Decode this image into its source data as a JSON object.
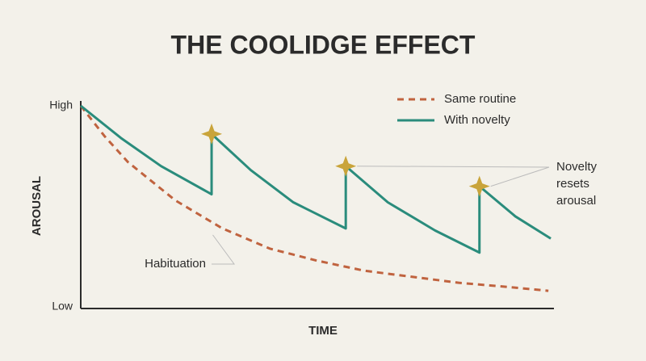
{
  "chart_data": {
    "type": "line",
    "title": "THE COOLIDGE EFFECT",
    "xlabel": "TIME",
    "ylabel": "AROUSAL",
    "xlim": [
      0,
      1
    ],
    "ylim": [
      0,
      1
    ],
    "yticks": [
      {
        "value": 0,
        "label": "Low"
      },
      {
        "value": 1,
        "label": "High"
      }
    ],
    "grid": false,
    "legend": "top-right",
    "series": [
      {
        "name": "Same routine",
        "color": "#c0633f",
        "dashed": true,
        "x": [
          0,
          0.05,
          0.1,
          0.2,
          0.3,
          0.4,
          0.5,
          0.6,
          0.7,
          0.8,
          0.9,
          0.99
        ],
        "values": [
          1.0,
          0.85,
          0.72,
          0.53,
          0.39,
          0.29,
          0.23,
          0.18,
          0.15,
          0.12,
          0.1,
          0.08
        ]
      },
      {
        "name": "With novelty",
        "color": "#2a8c7c",
        "dashed": false,
        "x": [
          0,
          0.085,
          0.17,
          0.277,
          0.277,
          0.36,
          0.45,
          0.561,
          0.561,
          0.65,
          0.75,
          0.844,
          0.844,
          0.92,
          0.995
        ],
        "values": [
          1.0,
          0.84,
          0.7,
          0.56,
          0.86,
          0.68,
          0.52,
          0.39,
          0.7,
          0.52,
          0.38,
          0.27,
          0.6,
          0.45,
          0.34
        ]
      }
    ],
    "annotations": [
      {
        "text": "Habituation",
        "series": 0,
        "index": 4
      },
      {
        "text": "Novelty resets arousal",
        "series": 1,
        "points": [
          4,
          8,
          12
        ]
      }
    ]
  }
}
